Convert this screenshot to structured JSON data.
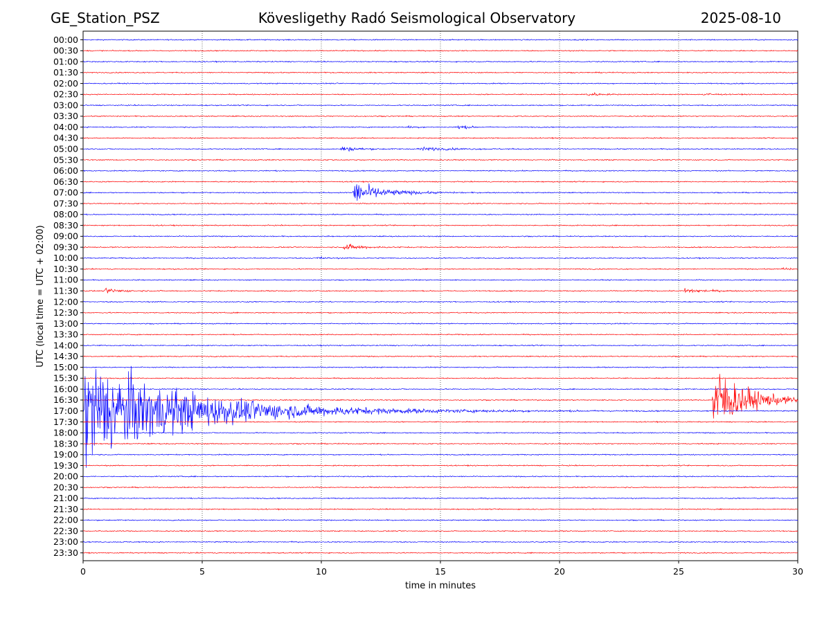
{
  "header": {
    "station": "GE_Station_PSZ",
    "observatory": "Kövesligethy Radó Seismological Observatory",
    "date": "2025-08-10"
  },
  "chart_data": {
    "type": "line",
    "chart_kind": "helicorder",
    "xlabel": "time in minutes",
    "ylabel": "UTC (local time = UTC + 02:00)",
    "xlim": [
      0,
      30
    ],
    "x_ticks": [
      0,
      5,
      10,
      15,
      20,
      25,
      30
    ],
    "x_grid": "dotted vertical lines at each x tick",
    "row_labels": [
      "00:00",
      "00:30",
      "01:00",
      "01:30",
      "02:00",
      "02:30",
      "03:00",
      "03:30",
      "04:00",
      "04:30",
      "05:00",
      "05:30",
      "06:00",
      "06:30",
      "07:00",
      "07:30",
      "08:00",
      "08:30",
      "09:00",
      "09:30",
      "10:00",
      "10:30",
      "11:00",
      "11:30",
      "12:00",
      "12:30",
      "13:00",
      "13:30",
      "14:00",
      "14:30",
      "15:00",
      "15:30",
      "16:00",
      "16:30",
      "17:00",
      "17:30",
      "18:00",
      "18:30",
      "19:00",
      "19:30",
      "20:00",
      "20:30",
      "21:00",
      "21:30",
      "22:00",
      "22:30",
      "23:00",
      "23:30"
    ],
    "trace_colors": [
      "#0000ff",
      "#ff0000"
    ],
    "trace_color_rule": "alternating by row, starting with blue at 00:00",
    "noise_level": 0.1,
    "events": [
      {
        "row": "02:30",
        "start_min": 21.1,
        "peak": 0.6,
        "duration_min": 1.2
      },
      {
        "row": "02:30",
        "start_min": 26.0,
        "peak": 0.45,
        "duration_min": 1.0
      },
      {
        "row": "04:00",
        "start_min": 13.6,
        "peak": 0.3,
        "duration_min": 0.8
      },
      {
        "row": "04:00",
        "start_min": 15.7,
        "peak": 0.5,
        "duration_min": 1.2
      },
      {
        "row": "05:00",
        "start_min": 10.8,
        "peak": 0.55,
        "duration_min": 2.0
      },
      {
        "row": "05:00",
        "start_min": 14.0,
        "peak": 0.35,
        "duration_min": 4.0
      },
      {
        "row": "07:00",
        "start_min": 11.3,
        "peak": 2.4,
        "duration_min": 3.5
      },
      {
        "row": "09:30",
        "start_min": 10.9,
        "peak": 0.7,
        "duration_min": 2.2
      },
      {
        "row": "10:00",
        "start_min": 9.8,
        "peak": 0.35,
        "duration_min": 1.0
      },
      {
        "row": "10:30",
        "start_min": 29.3,
        "peak": 0.45,
        "duration_min": 0.7
      },
      {
        "row": "11:30",
        "start_min": 0.9,
        "peak": 0.6,
        "duration_min": 1.8
      },
      {
        "row": "11:30",
        "start_min": 25.2,
        "peak": 0.55,
        "duration_min": 2.5
      },
      {
        "row": "17:00",
        "start_min": 0.0,
        "peak": 11.0,
        "duration_min": 13.0
      },
      {
        "row": "16:30",
        "start_min": 26.4,
        "peak": 7.5,
        "duration_min": 4.0
      }
    ]
  }
}
